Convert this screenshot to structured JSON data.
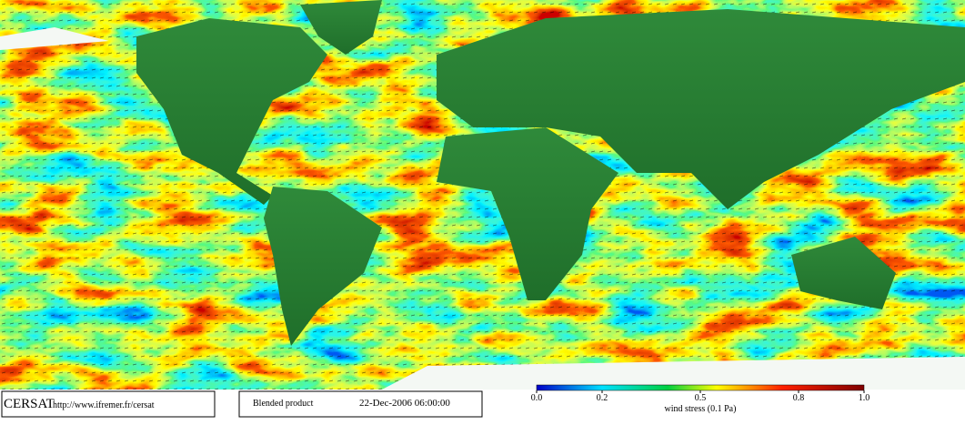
{
  "footer": {
    "logo": "CERSAT",
    "url": "http://www.ifremer.fr/cersat",
    "product": "Blended product",
    "date": "22-Dec-2006 06:00:00"
  },
  "colorbar": {
    "range": [
      0,
      1
    ],
    "ticks": [
      {
        "value": 0,
        "label": "0.0"
      },
      0.2,
      0.5,
      0.8,
      {
        "value": 1,
        "label": "1.0"
      }
    ],
    "label": "wind stress (0.1 Pa)"
  }
}
